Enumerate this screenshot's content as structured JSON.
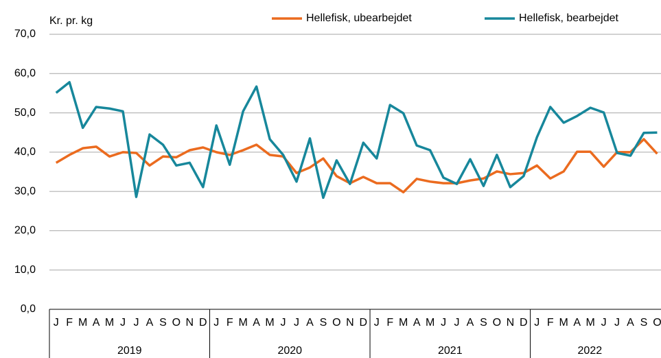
{
  "chart_data": {
    "type": "line",
    "y_axis_label": "Kr. pr. kg",
    "categories": [
      "J",
      "F",
      "M",
      "A",
      "M",
      "J",
      "J",
      "A",
      "S",
      "O",
      "N",
      "D",
      "J",
      "F",
      "M",
      "A",
      "M",
      "J",
      "J",
      "A",
      "S",
      "O",
      "N",
      "D",
      "J",
      "F",
      "M",
      "A",
      "M",
      "J",
      "J",
      "A",
      "S",
      "O",
      "N",
      "D",
      "J",
      "F",
      "M",
      "A",
      "M",
      "J",
      "J",
      "A",
      "S",
      "O"
    ],
    "years": [
      "2019",
      "2020",
      "2021",
      "2022"
    ],
    "series": [
      {
        "name": "Hellefisk, ubearbejdet",
        "color": "#eb6b1f",
        "values": [
          37.3,
          39.3,
          41.0,
          41.4,
          38.9,
          40.0,
          39.8,
          36.6,
          38.9,
          38.7,
          40.5,
          41.2,
          40.0,
          39.3,
          40.5,
          41.9,
          39.3,
          38.9,
          34.7,
          36.1,
          38.4,
          33.9,
          32.1,
          33.7,
          32.1,
          32.1,
          29.8,
          33.2,
          32.5,
          32.1,
          32.1,
          32.8,
          33.3,
          35.1,
          34.4,
          34.7,
          36.6,
          33.3,
          35.1,
          40.1,
          40.1,
          36.3,
          40.0,
          40.0,
          43.3,
          39.6
        ]
      },
      {
        "name": "Hellefisk, bearbejdet",
        "color": "#17879b",
        "values": [
          55.1,
          57.8,
          46.2,
          51.5,
          51.1,
          50.4,
          28.6,
          44.5,
          41.9,
          36.6,
          37.3,
          31.1,
          46.8,
          36.8,
          50.4,
          56.7,
          43.3,
          39.3,
          32.5,
          43.5,
          28.4,
          37.9,
          31.9,
          42.4,
          38.4,
          52.0,
          49.9,
          41.7,
          40.5,
          33.5,
          31.9,
          38.2,
          31.4,
          39.3,
          31.1,
          33.9,
          43.8,
          51.5,
          47.5,
          49.2,
          51.3,
          50.1,
          39.8,
          39.1,
          44.9,
          45.0
        ]
      }
    ],
    "ylim": [
      0,
      70
    ],
    "yticks": [
      {
        "value": 0,
        "label": "0,0"
      },
      {
        "value": 10,
        "label": "10,0"
      },
      {
        "value": 20,
        "label": "20,0"
      },
      {
        "value": 30,
        "label": "30,0"
      },
      {
        "value": 40,
        "label": "40,0"
      },
      {
        "value": 50,
        "label": "50,0"
      },
      {
        "value": 60,
        "label": "60,0"
      },
      {
        "value": 70,
        "label": "70,0"
      }
    ],
    "grid": true
  }
}
